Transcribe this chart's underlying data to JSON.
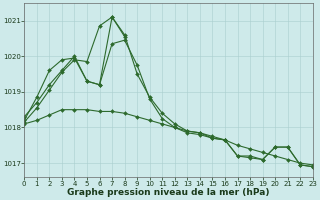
{
  "series": [
    {
      "x": [
        0,
        1,
        2,
        3,
        4,
        5,
        6,
        7,
        8,
        9,
        10,
        11,
        12,
        13,
        14,
        15,
        16,
        17,
        18,
        19,
        20,
        21,
        22,
        23
      ],
      "y": [
        1018.3,
        1018.7,
        1019.2,
        1019.6,
        1020.0,
        1019.3,
        1019.2,
        1020.35,
        1020.45,
        1019.75,
        1018.8,
        1018.25,
        1018.0,
        1017.85,
        1017.8,
        1017.7,
        1017.65,
        1017.2,
        1017.15,
        1017.1,
        1017.45,
        1017.45,
        1016.95,
        1016.9
      ]
    },
    {
      "x": [
        0,
        1,
        2,
        3,
        4,
        5,
        6,
        7,
        8,
        9,
        10,
        11,
        12,
        13,
        14,
        15,
        16,
        17,
        18,
        19,
        20,
        21,
        22,
        23
      ],
      "y": [
        1018.15,
        1018.55,
        1019.05,
        1019.55,
        1019.9,
        1019.85,
        1020.85,
        1021.1,
        1020.6,
        1019.5,
        1018.85,
        1018.4,
        1018.1,
        1017.9,
        1017.85,
        1017.7,
        1017.65,
        1017.2,
        1017.2,
        1017.1,
        1017.45,
        1017.45,
        1016.95,
        1016.9
      ]
    },
    {
      "x": [
        0,
        1,
        2,
        3,
        4,
        5,
        6,
        7,
        8,
        9,
        10,
        11,
        12,
        13,
        14,
        15,
        16,
        17,
        18,
        19,
        20,
        21,
        22,
        23
      ],
      "y": [
        1018.1,
        1018.2,
        1018.35,
        1018.5,
        1018.5,
        1018.5,
        1018.45,
        1018.45,
        1018.4,
        1018.3,
        1018.2,
        1018.1,
        1018.0,
        1017.9,
        1017.85,
        1017.75,
        1017.65,
        1017.5,
        1017.4,
        1017.3,
        1017.2,
        1017.1,
        1017.0,
        1016.95
      ]
    },
    {
      "x": [
        0,
        1,
        2,
        3,
        4,
        5,
        6,
        7,
        8
      ],
      "y": [
        1018.2,
        1018.85,
        1019.6,
        1019.9,
        1019.95,
        1019.3,
        1019.2,
        1021.1,
        1020.55
      ]
    }
  ],
  "line_color": "#2d6a2d",
  "marker": "D",
  "markersize": 2.0,
  "linewidth": 0.8,
  "background_color": "#ceeaea",
  "grid_color": "#aacfcf",
  "title": "Graphe pression niveau de la mer (hPa)",
  "title_fontsize": 6.5,
  "title_color": "#1a3a1a",
  "xlim": [
    0,
    23
  ],
  "ylim": [
    1016.6,
    1021.5
  ],
  "yticks": [
    1017,
    1018,
    1019,
    1020,
    1021
  ],
  "xticks": [
    0,
    1,
    2,
    3,
    4,
    5,
    6,
    7,
    8,
    9,
    10,
    11,
    12,
    13,
    14,
    15,
    16,
    17,
    18,
    19,
    20,
    21,
    22,
    23
  ],
  "tick_fontsize": 5.0,
  "tick_color": "#1a3a1a",
  "spine_color": "#666666",
  "figsize": [
    3.2,
    2.0
  ],
  "dpi": 100
}
